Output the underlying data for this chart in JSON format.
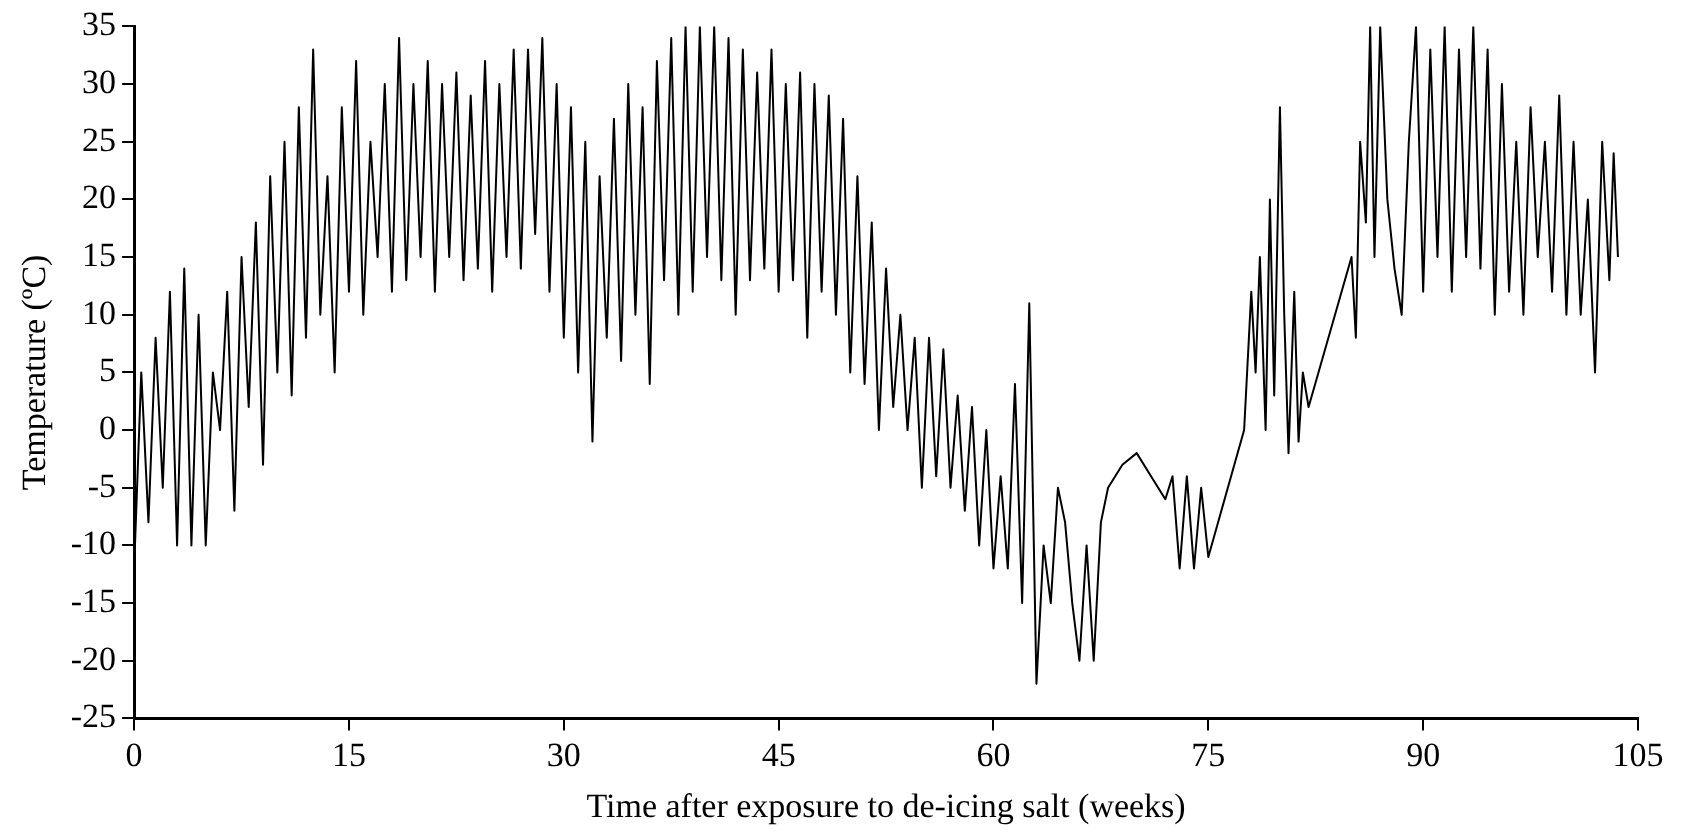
{
  "chart_data": {
    "type": "line",
    "xlabel": "Time after exposure to de-icing salt (weeks)",
    "ylabel": "Temperature (ºC)",
    "x": [
      0,
      0.5,
      1,
      1.5,
      2,
      2.5,
      3,
      3.5,
      4,
      4.5,
      5,
      5.5,
      6,
      6.5,
      7,
      7.5,
      8,
      8.5,
      9,
      9.5,
      10,
      10.5,
      11,
      11.5,
      12,
      12.5,
      13,
      13.5,
      14,
      14.5,
      15,
      15.5,
      16,
      16.5,
      17,
      17.5,
      18,
      18.5,
      19,
      19.5,
      20,
      20.5,
      21,
      21.5,
      22,
      22.5,
      23,
      23.5,
      24,
      24.5,
      25,
      25.5,
      26,
      26.5,
      27,
      27.5,
      28,
      28.5,
      29,
      29.5,
      30,
      30.5,
      31,
      31.5,
      32,
      32.5,
      33,
      33.5,
      34,
      34.5,
      35,
      35.5,
      36,
      36.5,
      37,
      37.5,
      38,
      38.5,
      39,
      39.5,
      40,
      40.5,
      41,
      41.5,
      42,
      42.5,
      43,
      43.5,
      44,
      44.5,
      45,
      45.5,
      46,
      46.5,
      47,
      47.5,
      48,
      48.5,
      49,
      49.5,
      50,
      50.5,
      51,
      51.5,
      52,
      52.5,
      53,
      53.5,
      54,
      54.5,
      55,
      55.5,
      56,
      56.5,
      57,
      57.5,
      58,
      58.5,
      59,
      59.5,
      60,
      60.5,
      61,
      61.5,
      62,
      62.5,
      63,
      63.5,
      64,
      64.5,
      65,
      65.5,
      66,
      66.5,
      67,
      67.5,
      68,
      69,
      70,
      71,
      72,
      72.5,
      73,
      73.5,
      74,
      74.5,
      75,
      77.5,
      78,
      78.3,
      78.6,
      79,
      79.3,
      79.6,
      80,
      80.3,
      80.6,
      81,
      81.3,
      81.6,
      82,
      85,
      85.3,
      85.6,
      86,
      86.3,
      86.6,
      87,
      87.5,
      88,
      88.5,
      89,
      89.5,
      90,
      90.5,
      91,
      91.5,
      92,
      92.5,
      93,
      93.5,
      94,
      94.5,
      95,
      95.5,
      96,
      96.5,
      97,
      97.5,
      98,
      98.5,
      99,
      99.5,
      100,
      100.5,
      101,
      101.5,
      102,
      102.5,
      103,
      103.3,
      103.6
    ],
    "series": [
      {
        "color": "#000000",
        "values": [
          -12,
          5,
          -8,
          8,
          -5,
          12,
          -10,
          14,
          -10,
          10,
          -10,
          5,
          0,
          12,
          -7,
          15,
          2,
          18,
          -3,
          22,
          5,
          25,
          3,
          28,
          8,
          33,
          10,
          22,
          5,
          28,
          12,
          32,
          10,
          25,
          15,
          30,
          12,
          34,
          13,
          30,
          15,
          32,
          12,
          30,
          15,
          31,
          13,
          29,
          14,
          32,
          12,
          30,
          15,
          33,
          14,
          33,
          17,
          34,
          12,
          30,
          8,
          28,
          5,
          25,
          -1,
          22,
          8,
          27,
          6,
          30,
          10,
          28,
          4,
          32,
          13,
          34,
          10,
          35,
          12,
          35,
          15,
          35,
          13,
          34,
          10,
          33,
          13,
          31,
          14,
          33,
          12,
          30,
          13,
          31,
          8,
          30,
          12,
          29,
          10,
          27,
          5,
          22,
          4,
          18,
          0,
          14,
          2,
          10,
          0,
          8,
          -5,
          8,
          -4,
          7,
          -5,
          3,
          -7,
          2,
          -10,
          0,
          -12,
          -4,
          -12,
          4,
          -15,
          11,
          -22,
          -10,
          -15,
          -5,
          -8,
          -15,
          -20,
          -10,
          -20,
          -8,
          -5,
          -3,
          -2,
          -4,
          -6,
          -4,
          -12,
          -4,
          -12,
          -5,
          -11,
          0,
          12,
          5,
          15,
          0,
          20,
          3,
          28,
          10,
          -2,
          12,
          -1,
          5,
          2,
          15,
          8,
          25,
          18,
          35,
          15,
          35,
          20,
          14,
          10,
          25,
          35,
          12,
          33,
          15,
          35,
          12,
          33,
          15,
          35,
          14,
          33,
          10,
          30,
          12,
          25,
          10,
          28,
          15,
          25,
          12,
          29,
          10,
          25,
          10,
          20,
          5,
          25,
          13,
          24,
          15
        ]
      }
    ],
    "xlim": [
      0,
      105
    ],
    "xticks": [
      0,
      15,
      30,
      45,
      60,
      75,
      90,
      105
    ],
    "ylim": [
      -25,
      35
    ],
    "yticks": [
      -25,
      -20,
      -15,
      -10,
      -5,
      0,
      5,
      10,
      15,
      20,
      25,
      30,
      35
    ],
    "grid": false,
    "legend": false,
    "marker": "none",
    "line_style": "solid"
  }
}
